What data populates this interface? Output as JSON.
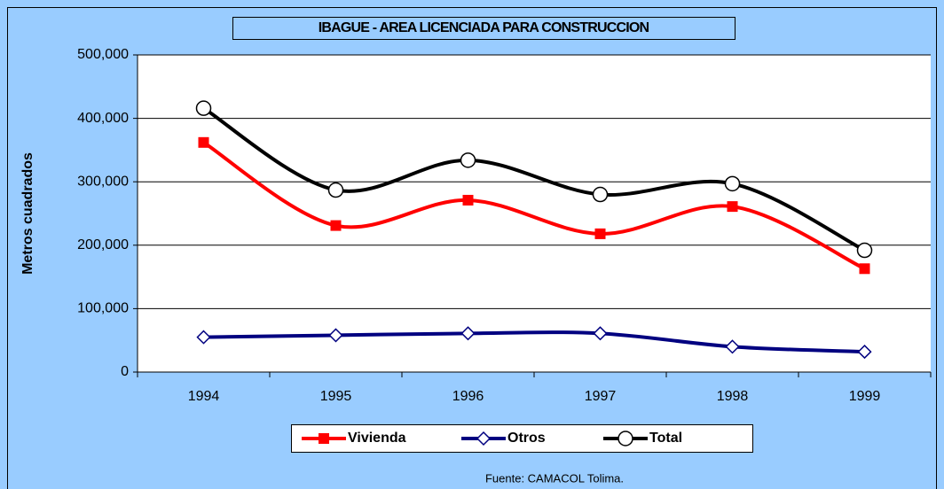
{
  "chart_data": {
    "type": "line",
    "title": "IBAGUE - AREA LICENCIADA PARA CONSTRUCCION",
    "ylabel": "Metros cuadrados",
    "source": "Fuente: CAMACOL Tolima.",
    "categories": [
      "1994",
      "1995",
      "1996",
      "1997",
      "1998",
      "1999"
    ],
    "series": [
      {
        "name": "Vivienda",
        "color": "#ff0000",
        "marker": "square",
        "values": [
          362000,
          231000,
          271000,
          218000,
          261000,
          163000
        ]
      },
      {
        "name": "Otros",
        "color": "#000080",
        "marker": "diamond",
        "values": [
          55000,
          58000,
          61000,
          61000,
          40000,
          32000
        ]
      },
      {
        "name": "Total",
        "color": "#000000",
        "marker": "circle",
        "values": [
          416000,
          287000,
          334000,
          280000,
          297000,
          192000
        ]
      }
    ],
    "ylim": [
      0,
      500000
    ],
    "yticks": [
      0,
      {
        "value": 100000,
        "label": "100,000"
      },
      {
        "value": 200000,
        "label": "200,000"
      },
      {
        "value": 300000,
        "label": "300,000"
      },
      {
        "value": 400000,
        "label": "400,000"
      },
      {
        "value": 500000,
        "label": "500,000"
      }
    ],
    "grid": true,
    "legend": "bottom"
  }
}
